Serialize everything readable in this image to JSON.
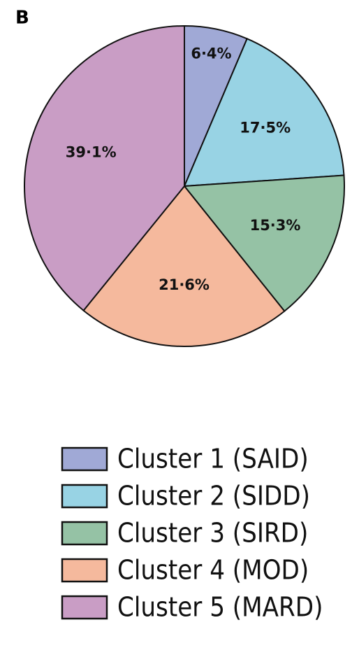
{
  "chart_data": {
    "type": "pie",
    "panel_label": "B",
    "categories": [
      "Cluster 1 (SAID)",
      "Cluster 2 (SIDD)",
      "Cluster 3 (SIRD)",
      "Cluster 4 (MOD)",
      "Cluster 5 (MARD)"
    ],
    "values": [
      6.4,
      17.5,
      15.3,
      21.6,
      39.1
    ],
    "value_labels": [
      "6·4%",
      "17·5%",
      "15·3%",
      "21·6%",
      "39·1%"
    ],
    "colors": [
      "#a0a9d6",
      "#98d3e4",
      "#95c2a5",
      "#f5b99d",
      "#c99dc5"
    ],
    "legend": "bottom"
  }
}
